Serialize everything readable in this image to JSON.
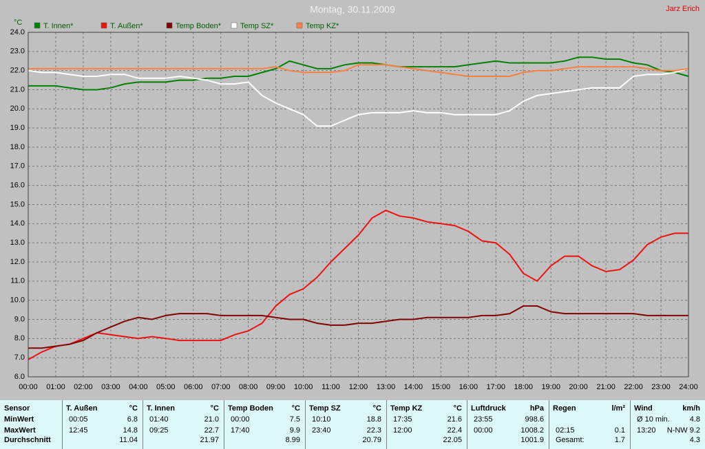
{
  "chart_data": {
    "type": "line",
    "title": "Montag, 30.11.2009",
    "author": "Jarz Erich",
    "y_label": "°C",
    "x": [
      0,
      0.5,
      1,
      1.5,
      2,
      2.5,
      3,
      3.5,
      4,
      4.5,
      5,
      5.5,
      6,
      6.5,
      7,
      7.5,
      8,
      8.5,
      9,
      9.5,
      10,
      10.5,
      11,
      11.5,
      12,
      12.5,
      13,
      13.5,
      14,
      14.5,
      15,
      15.5,
      16,
      16.5,
      17,
      17.5,
      18,
      18.5,
      19,
      19.5,
      20,
      20.5,
      21,
      21.5,
      22,
      22.5,
      23,
      23.5,
      24
    ],
    "series": [
      {
        "name": "T. Innen*",
        "color": "#008000",
        "values": [
          21.2,
          21.2,
          21.2,
          21.1,
          21.0,
          21.0,
          21.1,
          21.3,
          21.4,
          21.4,
          21.4,
          21.5,
          21.5,
          21.6,
          21.6,
          21.7,
          21.7,
          21.9,
          22.1,
          22.5,
          22.3,
          22.1,
          22.1,
          22.3,
          22.4,
          22.4,
          22.3,
          22.2,
          22.2,
          22.2,
          22.2,
          22.2,
          22.3,
          22.4,
          22.5,
          22.4,
          22.4,
          22.4,
          22.4,
          22.5,
          22.7,
          22.7,
          22.6,
          22.6,
          22.4,
          22.3,
          22.0,
          21.9,
          21.7
        ]
      },
      {
        "name": "T. Außen*",
        "color": "#ee1111",
        "values": [
          6.9,
          7.3,
          7.6,
          7.7,
          8.0,
          8.3,
          8.2,
          8.1,
          8.0,
          8.1,
          8.0,
          7.9,
          7.9,
          7.9,
          7.9,
          8.2,
          8.4,
          8.8,
          9.7,
          10.3,
          10.6,
          11.2,
          12.0,
          12.7,
          13.4,
          14.3,
          14.7,
          14.4,
          14.3,
          14.1,
          14.0,
          13.9,
          13.6,
          13.1,
          13.0,
          12.4,
          11.4,
          11.0,
          11.8,
          12.3,
          12.3,
          11.8,
          11.5,
          11.6,
          12.1,
          12.9,
          13.3,
          13.5,
          13.5
        ]
      },
      {
        "name": "Temp Boden*",
        "color": "#800000",
        "values": [
          7.5,
          7.5,
          7.6,
          7.7,
          7.9,
          8.3,
          8.6,
          8.9,
          9.1,
          9.0,
          9.2,
          9.3,
          9.3,
          9.3,
          9.2,
          9.2,
          9.2,
          9.2,
          9.1,
          9.0,
          9.0,
          8.8,
          8.7,
          8.7,
          8.8,
          8.8,
          8.9,
          9.0,
          9.0,
          9.1,
          9.1,
          9.1,
          9.1,
          9.2,
          9.2,
          9.3,
          9.7,
          9.7,
          9.4,
          9.3,
          9.3,
          9.3,
          9.3,
          9.3,
          9.3,
          9.2,
          9.2,
          9.2,
          9.2
        ]
      },
      {
        "name": "Temp SZ*",
        "color": "#ffffff",
        "values": [
          22.0,
          21.9,
          21.9,
          21.8,
          21.7,
          21.7,
          21.8,
          21.8,
          21.6,
          21.6,
          21.6,
          21.7,
          21.6,
          21.5,
          21.3,
          21.3,
          21.4,
          20.7,
          20.3,
          20.0,
          19.7,
          19.1,
          19.1,
          19.4,
          19.7,
          19.8,
          19.8,
          19.8,
          19.9,
          19.8,
          19.8,
          19.7,
          19.7,
          19.7,
          19.7,
          19.9,
          20.4,
          20.7,
          20.8,
          20.9,
          21.0,
          21.1,
          21.1,
          21.1,
          21.7,
          21.8,
          21.8,
          21.9,
          22.1
        ]
      },
      {
        "name": "Temp KZ*",
        "color": "#ff8040",
        "values": [
          22.1,
          22.1,
          22.1,
          22.1,
          22.1,
          22.1,
          22.1,
          22.1,
          22.1,
          22.1,
          22.1,
          22.1,
          22.1,
          22.1,
          22.1,
          22.1,
          22.1,
          22.1,
          22.2,
          22.0,
          21.9,
          21.9,
          21.9,
          22.0,
          22.3,
          22.3,
          22.3,
          22.2,
          22.1,
          22.0,
          21.9,
          21.8,
          21.7,
          21.7,
          21.7,
          21.7,
          21.9,
          22.0,
          22.0,
          22.1,
          22.2,
          22.2,
          22.2,
          22.2,
          22.2,
          22.1,
          22.0,
          22.0,
          22.1
        ]
      }
    ],
    "xlim": [
      0,
      24
    ],
    "xticks": [
      {
        "value": 0,
        "label": "00:00"
      },
      {
        "value": 1,
        "label": "01:00"
      },
      {
        "value": 2,
        "label": "02:00"
      },
      {
        "value": 3,
        "label": "03:00"
      },
      {
        "value": 4,
        "label": "04:00"
      },
      {
        "value": 5,
        "label": "05:00"
      },
      {
        "value": 6,
        "label": "06:00"
      },
      {
        "value": 7,
        "label": "07:00"
      },
      {
        "value": 8,
        "label": "08:00"
      },
      {
        "value": 9,
        "label": "09:00"
      },
      {
        "value": 10,
        "label": "10:00"
      },
      {
        "value": 11,
        "label": "11:00"
      },
      {
        "value": 12,
        "label": "12:00"
      },
      {
        "value": 13,
        "label": "13:00"
      },
      {
        "value": 14,
        "label": "14:00"
      },
      {
        "value": 15,
        "label": "15:00"
      },
      {
        "value": 16,
        "label": "16:00"
      },
      {
        "value": 17,
        "label": "17:00"
      },
      {
        "value": 18,
        "label": "18:00"
      },
      {
        "value": 19,
        "label": "19:00"
      },
      {
        "value": 20,
        "label": "20:00"
      },
      {
        "value": 21,
        "label": "21:00"
      },
      {
        "value": 22,
        "label": "22:00"
      },
      {
        "value": 23,
        "label": "23:00"
      },
      {
        "value": 24,
        "label": "24:00"
      }
    ],
    "ylim": [
      6,
      24
    ],
    "yticks": [
      {
        "value": 6,
        "label": "6.0"
      },
      {
        "value": 7,
        "label": "7.0"
      },
      {
        "value": 8,
        "label": "8.0"
      },
      {
        "value": 9,
        "label": "9.0"
      },
      {
        "value": 10,
        "label": "10.0"
      },
      {
        "value": 11,
        "label": "11.0"
      },
      {
        "value": 12,
        "label": "12.0"
      },
      {
        "value": 13,
        "label": "13.0"
      },
      {
        "value": 14,
        "label": "14.0"
      },
      {
        "value": 15,
        "label": "15.0"
      },
      {
        "value": 16,
        "label": "16.0"
      },
      {
        "value": 17,
        "label": "17.0"
      },
      {
        "value": 18,
        "label": "18.0"
      },
      {
        "value": 19,
        "label": "19.0"
      },
      {
        "value": 20,
        "label": "20.0"
      },
      {
        "value": 21,
        "label": "21.0"
      },
      {
        "value": 22,
        "label": "22.0"
      },
      {
        "value": 23,
        "label": "23.0"
      },
      {
        "value": 24,
        "label": "24.0"
      }
    ],
    "grid": true
  },
  "stats": {
    "label_header": "Sensor",
    "row_labels": [
      "MinWert",
      "MaxWert",
      "Durchschnitt"
    ],
    "blocks": [
      {
        "name": "T. Außen",
        "unit": "°C",
        "rows": [
          [
            "00:05",
            "6.8"
          ],
          [
            "12:45",
            "14.8"
          ],
          [
            null,
            "11.04"
          ]
        ]
      },
      {
        "name": "T. Innen",
        "unit": "°C",
        "rows": [
          [
            "01:40",
            "21.0"
          ],
          [
            "09:25",
            "22.7"
          ],
          [
            null,
            "21.97"
          ]
        ]
      },
      {
        "name": "Temp Boden",
        "unit": "°C",
        "rows": [
          [
            "00:00",
            "7.5"
          ],
          [
            "17:40",
            "9.9"
          ],
          [
            null,
            "8.99"
          ]
        ]
      },
      {
        "name": "Temp SZ",
        "unit": "°C",
        "rows": [
          [
            "10:10",
            "18.8"
          ],
          [
            "23:40",
            "22.3"
          ],
          [
            null,
            "20.79"
          ]
        ]
      },
      {
        "name": "Temp KZ",
        "unit": "°C",
        "rows": [
          [
            "17:35",
            "21.6"
          ],
          [
            "12:00",
            "22.4"
          ],
          [
            null,
            "22.05"
          ]
        ]
      },
      {
        "name": "Luftdruck",
        "unit": "hPa",
        "rows": [
          [
            "23:55",
            "998.6"
          ],
          [
            "00:00",
            "1008.2"
          ],
          [
            null,
            "1001.9"
          ]
        ]
      },
      {
        "name": "Regen",
        "unit": "l/m²",
        "rows": [
          [
            null,
            null
          ],
          [
            "02:15",
            "0.1"
          ],
          [
            "Gesamt:",
            "1.7"
          ]
        ]
      },
      {
        "name": "Wind",
        "unit": "km/h",
        "rows": [
          [
            "Ø 10 min.",
            "4.8"
          ],
          [
            "13:20",
            "N-NW 9.2"
          ],
          [
            null,
            "4.3"
          ]
        ]
      }
    ]
  }
}
